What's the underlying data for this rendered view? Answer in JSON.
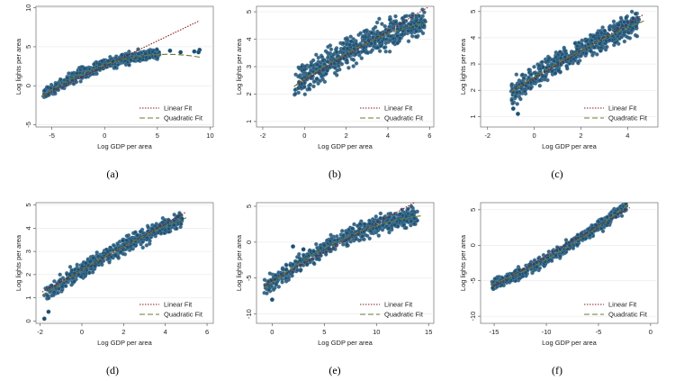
{
  "captions": [
    "(a)",
    "(b)",
    "(c)",
    "(d)",
    "(e)",
    "(f)"
  ],
  "chart_data": [
    {
      "type": "scatter",
      "xlabel": "Log GDP per area",
      "ylabel": "Log lights per area",
      "xlim": [
        -6.5,
        10.3
      ],
      "ylim": [
        -5.3,
        10.2
      ],
      "xticks": [
        -5,
        0,
        5,
        10
      ],
      "yticks": [
        -5,
        0,
        5,
        10
      ],
      "scatter": {
        "xmin": -5.8,
        "xmax": 5.2,
        "band_lo": 0.8,
        "band_hi": 0.7,
        "outliers": [
          [
            7.2,
            4.3
          ],
          [
            8.5,
            4.4
          ],
          [
            9.0,
            4.6
          ],
          [
            8.9,
            4.3
          ],
          [
            6.2,
            4.5
          ]
        ]
      },
      "linear_fit": {
        "intercept": 2.5,
        "slope": 0.65,
        "x": [
          -6.0,
          9.0
        ]
      },
      "quadratic_fit": {
        "a": 2.7,
        "b": 0.45,
        "c": -0.038,
        "x": [
          -6.0,
          9.0
        ]
      },
      "legend": [
        "Linear Fit",
        "Quadratic Fit"
      ],
      "colors": {
        "points": "#1f4e6e",
        "linear": "#8b1a1a",
        "quadratic": "#6b7b2f"
      }
    },
    {
      "type": "scatter",
      "xlabel": "Log GDP per area",
      "ylabel": "Log lights per area",
      "xlim": [
        -2.3,
        6.2
      ],
      "ylim": [
        0.8,
        5.2
      ],
      "xticks": [
        -2,
        0,
        2,
        4,
        6
      ],
      "yticks": [
        1,
        2,
        3,
        4,
        5
      ],
      "scatter": {
        "xmin": -0.5,
        "xmax": 5.8,
        "band_lo": 0.55,
        "band_hi": 0.45,
        "outliers": []
      },
      "linear_fit": {
        "intercept": 2.5,
        "slope": 0.45,
        "x": [
          -0.5,
          5.9
        ]
      },
      "quadratic_fit": {
        "a": 2.55,
        "b": 0.53,
        "c": -0.03,
        "x": [
          -0.5,
          5.9
        ]
      },
      "legend": [
        "Linear Fit",
        "Quadratic Fit"
      ],
      "colors": {
        "points": "#1f4e6e",
        "linear": "#8b1a1a",
        "quadratic": "#6b7b2f"
      }
    },
    {
      "type": "scatter",
      "xlabel": "Log GDP per area",
      "ylabel": "Log lights per area",
      "xlim": [
        -2.3,
        5.3
      ],
      "ylim": [
        0.6,
        5.2
      ],
      "xticks": [
        -2,
        0,
        2,
        4
      ],
      "yticks": [
        1,
        2,
        3,
        4,
        5
      ],
      "scatter": {
        "xmin": -1.0,
        "xmax": 4.5,
        "band_lo": 0.5,
        "band_hi": 0.4,
        "outliers": [
          [
            -0.9,
            1.3
          ],
          [
            -0.7,
            1.1
          ],
          [
            3.6,
            4.5
          ],
          [
            4.2,
            4.6
          ]
        ]
      },
      "linear_fit": {
        "intercept": 2.45,
        "slope": 0.52,
        "x": [
          -1.0,
          4.7
        ]
      },
      "quadratic_fit": {
        "a": 2.5,
        "b": 0.55,
        "c": -0.02,
        "x": [
          -1.0,
          4.7
        ]
      },
      "legend": [
        "Linear Fit",
        "Quadratic Fit"
      ],
      "colors": {
        "points": "#1f4e6e",
        "linear": "#8b1a1a",
        "quadratic": "#6b7b2f"
      }
    },
    {
      "type": "scatter",
      "xlabel": "Log GDP per area",
      "ylabel": "Log lights per area",
      "xlim": [
        -2.2,
        6.3
      ],
      "ylim": [
        -0.1,
        5.1
      ],
      "xticks": [
        -2,
        0,
        2,
        4,
        6
      ],
      "yticks": [
        0,
        1,
        2,
        3,
        4,
        5
      ],
      "scatter": {
        "xmin": -1.8,
        "xmax": 4.8,
        "band_lo": 0.35,
        "band_hi": 0.35,
        "outliers": [
          [
            -1.8,
            0.1
          ],
          [
            -1.6,
            0.4
          ],
          [
            4.6,
            4.5
          ],
          [
            4.8,
            4.4
          ]
        ]
      },
      "linear_fit": {
        "intercept": 2.2,
        "slope": 0.5,
        "x": [
          -1.9,
          5.0
        ]
      },
      "quadratic_fit": {
        "a": 2.2,
        "b": 0.55,
        "c": -0.02,
        "x": [
          -1.9,
          5.0
        ]
      },
      "legend": [
        "Linear Fit",
        "Quadratic Fit"
      ],
      "colors": {
        "points": "#1f4e6e",
        "linear": "#8b1a1a",
        "quadratic": "#6b7b2f"
      }
    },
    {
      "type": "scatter",
      "xlabel": "Log GDP per area",
      "ylabel": "Log lights per area",
      "xlim": [
        -1.5,
        15.5
      ],
      "ylim": [
        -11.3,
        5.5
      ],
      "xticks": [
        0,
        5,
        10,
        15
      ],
      "yticks": [
        -10,
        -5,
        0,
        5
      ],
      "scatter": {
        "xmin": -0.8,
        "xmax": 14.0,
        "band_lo": 1.3,
        "band_hi": 1.2,
        "outliers": [
          [
            2.0,
            -0.6
          ],
          [
            3.0,
            -1.0
          ],
          [
            0.0,
            -8.0
          ]
        ]
      },
      "linear_fit": {
        "intercept": -5.4,
        "slope": 0.8,
        "x": [
          -0.8,
          14.5
        ]
      },
      "quadratic_fit": {
        "a": -5.6,
        "b": 1.12,
        "c": -0.033,
        "x": [
          -0.8,
          14.5
        ]
      },
      "legend": [
        "Linear Fit",
        "Quadratic Fit"
      ],
      "colors": {
        "points": "#1f4e6e",
        "linear": "#8b1a1a",
        "quadratic": "#6b7b2f"
      }
    },
    {
      "type": "scatter",
      "xlabel": "Log GDP per area",
      "ylabel": "Log lights per area",
      "xlim": [
        -16.3,
        0.7
      ],
      "ylim": [
        -11.0,
        6.0
      ],
      "xticks": [
        -15,
        -10,
        -5,
        0
      ],
      "yticks": [
        -10,
        -5,
        0,
        5
      ],
      "scatter": {
        "xmin": -15.2,
        "xmax": -2.3,
        "band_lo": 0.9,
        "band_hi": 0.8,
        "outliers": []
      },
      "linear_fit": {
        "intercept": 7.0,
        "slope": 0.85,
        "x": [
          -15.3,
          -2.0
        ]
      },
      "quadratic_fit": {
        "a": 8.5,
        "b": 1.3,
        "c": 0.025,
        "x": [
          -15.3,
          -2.0
        ]
      },
      "legend": [
        "Linear Fit",
        "Quadratic Fit"
      ],
      "colors": {
        "points": "#1f4e6e",
        "linear": "#8b1a1a",
        "quadratic": "#6b7b2f"
      }
    }
  ]
}
